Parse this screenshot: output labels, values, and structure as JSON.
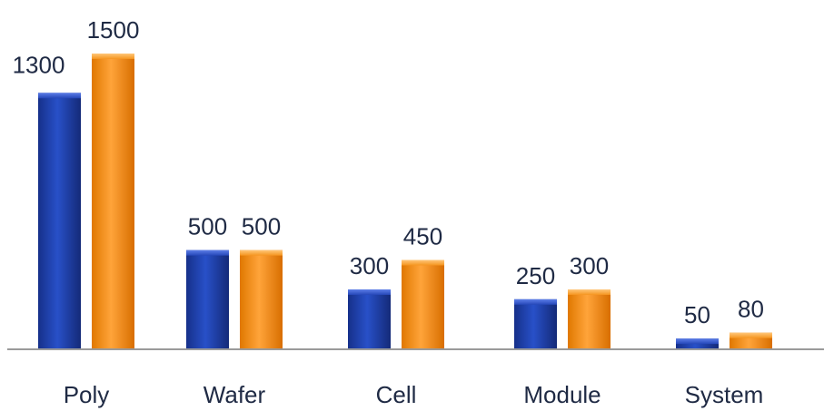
{
  "chart_data": {
    "type": "bar",
    "title": "",
    "xlabel": "",
    "ylabel": "",
    "categories": [
      "Poly",
      "Wafer",
      "Cell",
      "Module",
      "System"
    ],
    "series": [
      {
        "values": [
          1300,
          500,
          300,
          250,
          50
        ],
        "color": "#1e3fa6"
      },
      {
        "values": [
          1500,
          500,
          450,
          300,
          80
        ],
        "color": "#f28c0f"
      }
    ],
    "ylim": [
      0,
      1500
    ],
    "grid": false,
    "legend": "none",
    "data_labels": true
  }
}
